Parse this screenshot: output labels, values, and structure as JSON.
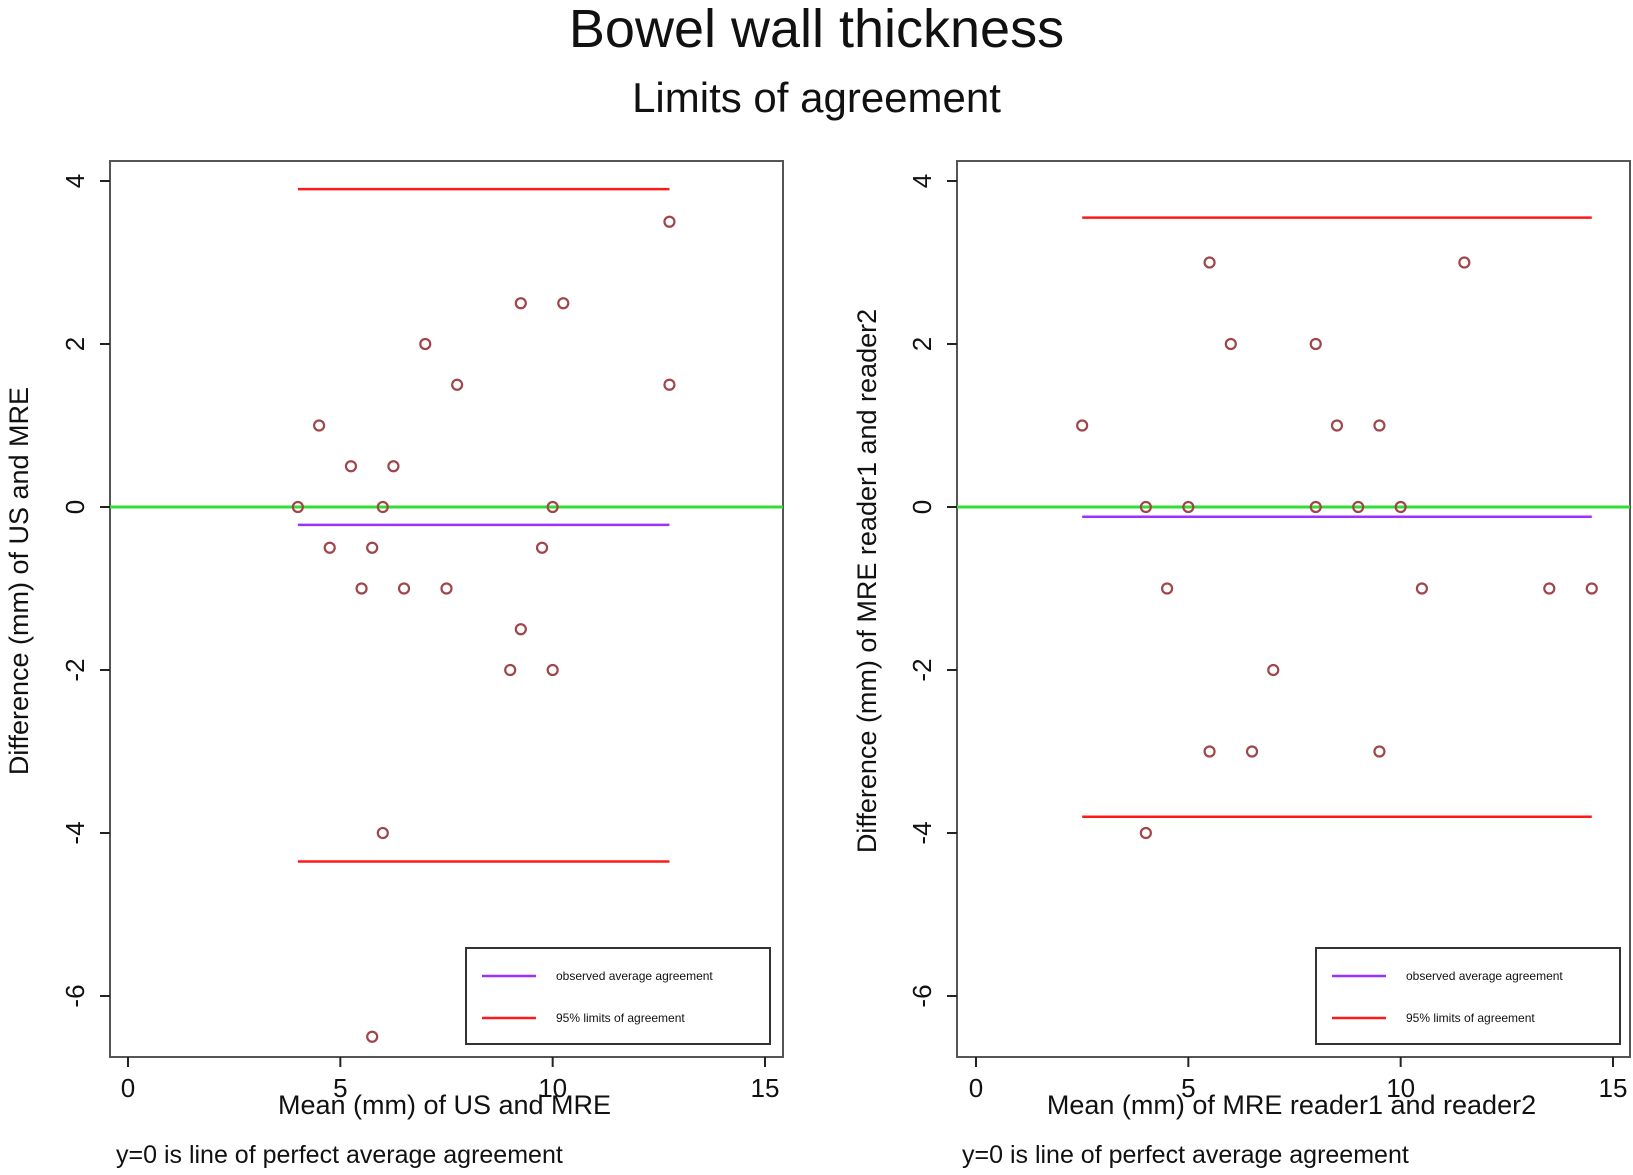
{
  "title": "Bowel wall thickness",
  "subtitle": "Limits of agreement",
  "colors": {
    "points": "#a0454a",
    "mean_line": "#9b30ff",
    "limits": "#ff1a1a",
    "zero_line": "#33dd33",
    "frame": "#555555"
  },
  "chart_data": [
    {
      "type": "scatter",
      "xlabel": "Mean (mm) of US and MRE",
      "ylabel": "Difference (mm) of US and MRE",
      "note": "y=0 is line of perfect average agreement",
      "xlim": [
        0,
        15
      ],
      "ylim": [
        -6.6,
        4.2
      ],
      "xticks": [
        0,
        5,
        10,
        15
      ],
      "yticks": [
        -6,
        -4,
        -2,
        0,
        2,
        4
      ],
      "reference_line": 0,
      "mean_difference": {
        "y": -0.22,
        "x_range": [
          4,
          12.75
        ]
      },
      "limits_of_agreement": {
        "upper": 3.9,
        "lower": -4.35,
        "x_range": [
          4,
          12.75
        ]
      },
      "legend": {
        "position": "bottom-right",
        "entries": [
          "observed average agreement",
          "95% limits of agreement"
        ]
      },
      "points": [
        [
          12.75,
          3.5
        ],
        [
          9.25,
          2.5
        ],
        [
          10.25,
          2.5
        ],
        [
          7.0,
          2.0
        ],
        [
          7.75,
          1.5
        ],
        [
          12.75,
          1.5
        ],
        [
          4.5,
          1.0
        ],
        [
          5.25,
          0.5
        ],
        [
          6.25,
          0.5
        ],
        [
          4.0,
          0.0
        ],
        [
          6.0,
          0.0
        ],
        [
          10.0,
          0.0
        ],
        [
          4.75,
          -0.5
        ],
        [
          5.75,
          -0.5
        ],
        [
          9.75,
          -0.5
        ],
        [
          5.5,
          -1.0
        ],
        [
          6.5,
          -1.0
        ],
        [
          7.5,
          -1.0
        ],
        [
          9.25,
          -1.5
        ],
        [
          9.0,
          -2.0
        ],
        [
          10.0,
          -2.0
        ],
        [
          6.0,
          -4.0
        ],
        [
          5.75,
          -6.5
        ]
      ]
    },
    {
      "type": "scatter",
      "xlabel": "Mean (mm) of MRE reader1 and reader2",
      "ylabel": "Difference (mm) of MRE reader1 and reader2",
      "note": "y=0 is line of perfect average agreement",
      "xlim": [
        0,
        15
      ],
      "ylim": [
        -6.6,
        4.2
      ],
      "xticks": [
        0,
        5,
        10,
        15
      ],
      "yticks": [
        -6,
        -4,
        -2,
        0,
        2,
        4
      ],
      "reference_line": 0,
      "mean_difference": {
        "y": -0.12,
        "x_range": [
          2.5,
          14.5
        ]
      },
      "limits_of_agreement": {
        "upper": 3.55,
        "lower": -3.8,
        "x_range": [
          2.5,
          14.5
        ]
      },
      "legend": {
        "position": "bottom-right",
        "entries": [
          "observed average agreement",
          "95% limits of agreement"
        ]
      },
      "points": [
        [
          5.5,
          3.0
        ],
        [
          11.5,
          3.0
        ],
        [
          6.0,
          2.0
        ],
        [
          8.0,
          2.0
        ],
        [
          2.5,
          1.0
        ],
        [
          8.5,
          1.0
        ],
        [
          9.5,
          1.0
        ],
        [
          4.0,
          0.0
        ],
        [
          5.0,
          0.0
        ],
        [
          8.0,
          0.0
        ],
        [
          9.0,
          0.0
        ],
        [
          10.0,
          0.0
        ],
        [
          4.5,
          -1.0
        ],
        [
          10.5,
          -1.0
        ],
        [
          13.5,
          -1.0
        ],
        [
          14.5,
          -1.0
        ],
        [
          7.0,
          -2.0
        ],
        [
          5.5,
          -3.0
        ],
        [
          6.5,
          -3.0
        ],
        [
          9.5,
          -3.0
        ],
        [
          4.0,
          -4.0
        ]
      ]
    }
  ]
}
